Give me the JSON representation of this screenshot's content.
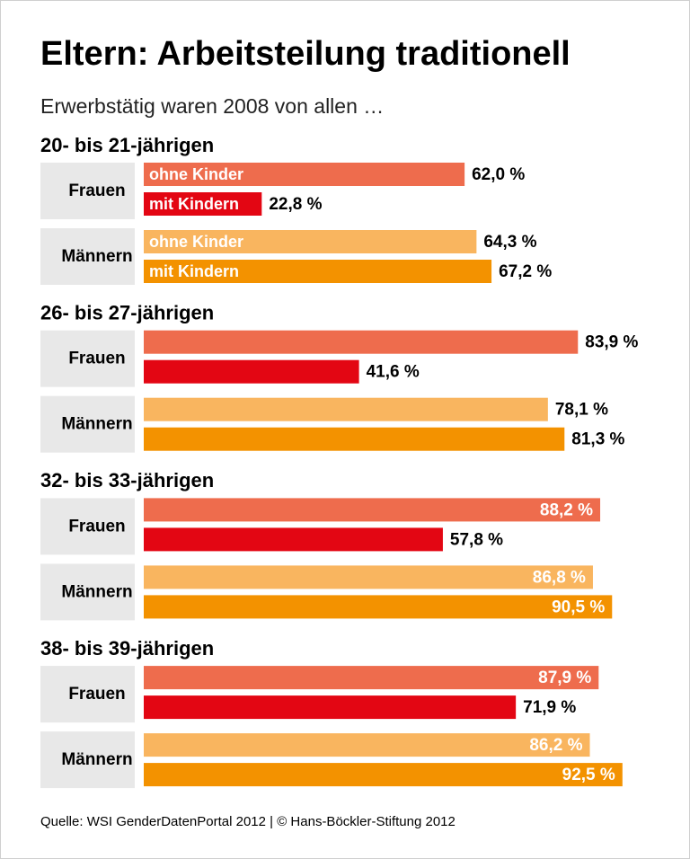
{
  "chart_data": {
    "type": "grouped-bar",
    "title": "Eltern: Arbeitsteilung traditionell",
    "subtitle": "Erwerbstätig waren 2008 von allen …",
    "source": "Quelle: WSI GenderDatenPortal 2012 | © Hans-Böckler-Stiftung 2012",
    "categories": [
      "20- bis 21-jährigen",
      "26- bis 27-jährigen",
      "32- bis 33-jährigen",
      "38- bis 39-jährigen"
    ],
    "xlim": [
      0,
      100
    ],
    "groups": [
      {
        "name": "Frauen",
        "series": [
          {
            "name": "ohne Kinder",
            "color": "#ee6c4d",
            "values": [
              62.0,
              83.9,
              88.2,
              87.9
            ],
            "value_labels": [
              "62,0 %",
              "83,9 %",
              "88,2 %",
              "87,9 %"
            ]
          },
          {
            "name": "mit Kindern",
            "color": "#e30613",
            "values": [
              22.8,
              41.6,
              57.8,
              71.9
            ],
            "value_labels": [
              "22,8 %",
              "41,6 %",
              "57,8 %",
              "71,9 %"
            ]
          }
        ]
      },
      {
        "name": "Männern",
        "series": [
          {
            "name": "ohne Kinder",
            "color": "#f9b55f",
            "values": [
              64.3,
              78.1,
              86.8,
              86.2
            ],
            "value_labels": [
              "64,3 %",
              "78,1 %",
              "86,8 %",
              "86,2 %"
            ]
          },
          {
            "name": "mit Kindern",
            "color": "#f39200",
            "values": [
              67.2,
              81.3,
              90.5,
              92.5
            ],
            "value_labels": [
              "67,2 %",
              "81,3 %",
              "90,5 %",
              "92,5 %"
            ]
          }
        ]
      }
    ]
  }
}
